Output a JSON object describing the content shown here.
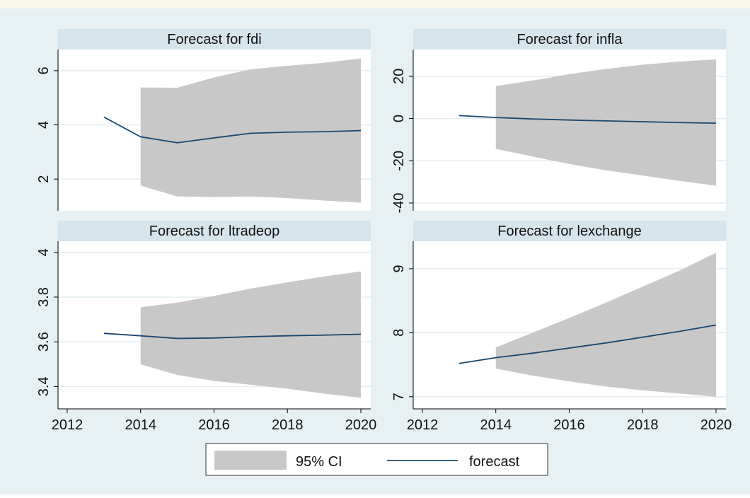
{
  "chart_data": [
    {
      "type": "line",
      "title": "Forecast for fdi",
      "x": [
        2013,
        2014,
        2015,
        2016,
        2017,
        2018,
        2019,
        2020
      ],
      "forecast": [
        4.29,
        3.56,
        3.34,
        3.52,
        3.69,
        3.73,
        3.75,
        3.79
      ],
      "ci_upper": [
        null,
        5.38,
        5.37,
        5.75,
        6.05,
        6.18,
        6.29,
        6.45
      ],
      "ci_lower": [
        null,
        1.76,
        1.36,
        1.34,
        1.36,
        1.3,
        1.21,
        1.13
      ],
      "xlim": [
        2011.75,
        2020.27
      ],
      "ylim": [
        0.83,
        6.78
      ],
      "yticks": [
        2,
        4,
        6
      ],
      "grid": true
    },
    {
      "type": "line",
      "title": "Forecast for infla",
      "x": [
        2013,
        2014,
        2015,
        2016,
        2017,
        2018,
        2019,
        2020
      ],
      "forecast": [
        1.4,
        0.5,
        -0.2,
        -0.7,
        -1.1,
        -1.5,
        -1.9,
        -2.2
      ],
      "ci_upper": [
        null,
        15.4,
        18,
        21,
        23.5,
        25.5,
        27,
        28
      ],
      "ci_lower": [
        null,
        -14.4,
        -18,
        -21.5,
        -24.5,
        -27,
        -29.5,
        -31.8
      ],
      "xlim": [
        2011.75,
        2020.27
      ],
      "ylim": [
        -43.7,
        32.7
      ],
      "yticks": [
        -40,
        -20,
        0,
        20
      ],
      "grid": true
    },
    {
      "type": "line",
      "title": "Forecast for ltradeop",
      "x": [
        2013,
        2014,
        2015,
        2016,
        2017,
        2018,
        2019,
        2020
      ],
      "forecast": [
        3.638,
        3.627,
        3.615,
        3.617,
        3.623,
        3.627,
        3.63,
        3.634
      ],
      "ci_upper": [
        null,
        3.755,
        3.775,
        3.805,
        3.838,
        3.866,
        3.892,
        3.915
      ],
      "ci_lower": [
        null,
        3.499,
        3.452,
        3.425,
        3.408,
        3.39,
        3.368,
        3.35
      ],
      "xlim": [
        2011.75,
        2020.27
      ],
      "ylim": [
        3.3,
        4.05
      ],
      "yticks": [
        3.4,
        3.6,
        3.8,
        4
      ],
      "xticks": [
        2012,
        2014,
        2016,
        2018,
        2020
      ],
      "grid": true
    },
    {
      "type": "line",
      "title": "Forecast for lexchange",
      "x": [
        2013,
        2014,
        2015,
        2016,
        2017,
        2018,
        2019,
        2020
      ],
      "forecast": [
        7.52,
        7.61,
        7.68,
        7.76,
        7.84,
        7.93,
        8.02,
        8.12
      ],
      "ci_upper": [
        null,
        7.77,
        8.0,
        8.23,
        8.47,
        8.72,
        8.97,
        9.25
      ],
      "ci_lower": [
        null,
        7.44,
        7.33,
        7.24,
        7.16,
        7.1,
        7.05,
        7.0
      ],
      "xlim": [
        2011.75,
        2020.27
      ],
      "ylim": [
        6.81,
        9.43
      ],
      "yticks": [
        7,
        8,
        9
      ],
      "xticks": [
        2012,
        2014,
        2016,
        2018,
        2020
      ],
      "grid": true
    }
  ],
  "legend": {
    "items": [
      {
        "name": "95% CI",
        "color": "#c8c8c8"
      },
      {
        "name": "forecast",
        "color": "#1a476f"
      }
    ]
  }
}
